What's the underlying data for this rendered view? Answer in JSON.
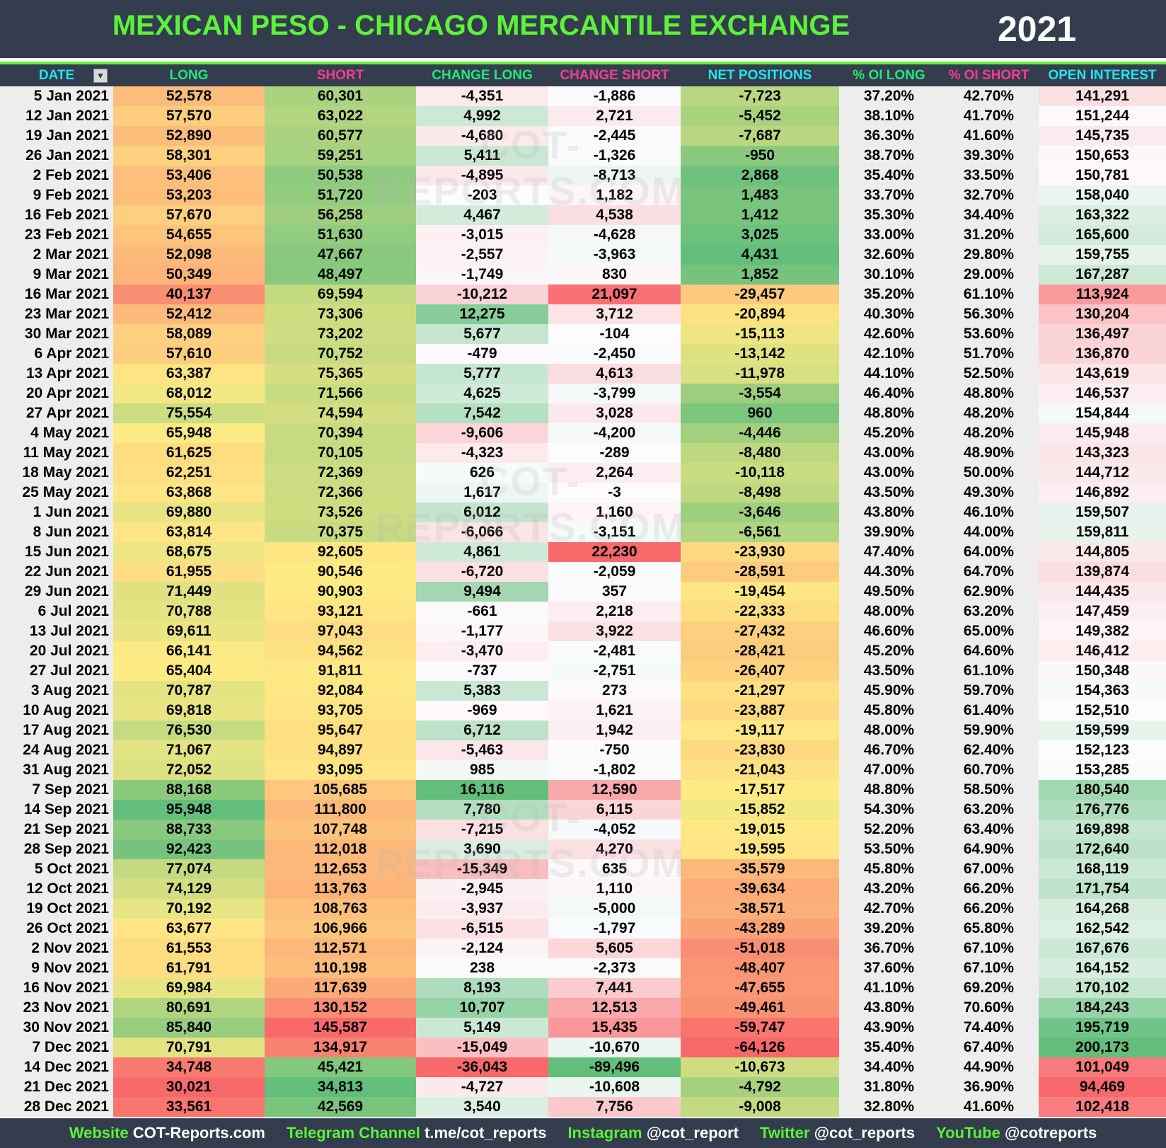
{
  "header": {
    "title": "MEXICAN PESO - CHICAGO MERCANTILE EXCHANGE",
    "year": "2021"
  },
  "watermark": "COT-REPORTS.COM",
  "colors": {
    "background": "#333d4d",
    "title": "#5cf23a",
    "cyan": "#22e5f0",
    "green": "#22e87a",
    "pink": "#ff3d8b",
    "scale_red": "#F8696B",
    "scale_yellow": "#FFEB84",
    "scale_green": "#63BE7B",
    "scale_white": "#FCFCFF"
  },
  "chart_data": {
    "type": "table",
    "columns": [
      {
        "label": "DATE",
        "color": "#22e5f0",
        "has_filter": true
      },
      {
        "label": "LONG",
        "color": "#22e87a",
        "scale": "red-yellow-green"
      },
      {
        "label": "SHORT",
        "color": "#ff3d8b",
        "scale": "green-yellow-red"
      },
      {
        "label": "CHANGE LONG",
        "color": "#22e87a",
        "scale": "red-white-green"
      },
      {
        "label": "CHANGE SHORT",
        "color": "#ff3d8b",
        "scale": "green-white-red"
      },
      {
        "label": "NET POSITIONS",
        "color": "#22e5f0",
        "scale": "red-yellow-green"
      },
      {
        "label": "% OI LONG",
        "color": "#22e87a"
      },
      {
        "label": "% OI SHORT",
        "color": "#ff3d8b"
      },
      {
        "label": "OPEN INTEREST",
        "color": "#22e5f0",
        "scale": "red-white-green"
      }
    ],
    "rows": [
      [
        "5 Jan 2021",
        "52,578",
        "60,301",
        "-4,351",
        "-1,886",
        "-7,723",
        "37.20%",
        "42.70%",
        "141,291"
      ],
      [
        "12 Jan 2021",
        "57,570",
        "63,022",
        "4,992",
        "2,721",
        "-5,452",
        "38.10%",
        "41.70%",
        "151,244"
      ],
      [
        "19 Jan 2021",
        "52,890",
        "60,577",
        "-4,680",
        "-2,445",
        "-7,687",
        "36.30%",
        "41.60%",
        "145,735"
      ],
      [
        "26 Jan 2021",
        "58,301",
        "59,251",
        "5,411",
        "-1,326",
        "-950",
        "38.70%",
        "39.30%",
        "150,653"
      ],
      [
        "2 Feb 2021",
        "53,406",
        "50,538",
        "-4,895",
        "-8,713",
        "2,868",
        "35.40%",
        "33.50%",
        "150,781"
      ],
      [
        "9 Feb 2021",
        "53,203",
        "51,720",
        "-203",
        "1,182",
        "1,483",
        "33.70%",
        "32.70%",
        "158,040"
      ],
      [
        "16 Feb 2021",
        "57,670",
        "56,258",
        "4,467",
        "4,538",
        "1,412",
        "35.30%",
        "34.40%",
        "163,322"
      ],
      [
        "23 Feb 2021",
        "54,655",
        "51,630",
        "-3,015",
        "-4,628",
        "3,025",
        "33.00%",
        "31.20%",
        "165,600"
      ],
      [
        "2 Mar 2021",
        "52,098",
        "47,667",
        "-2,557",
        "-3,963",
        "4,431",
        "32.60%",
        "29.80%",
        "159,755"
      ],
      [
        "9 Mar 2021",
        "50,349",
        "48,497",
        "-1,749",
        "830",
        "1,852",
        "30.10%",
        "29.00%",
        "167,287"
      ],
      [
        "16 Mar 2021",
        "40,137",
        "69,594",
        "-10,212",
        "21,097",
        "-29,457",
        "35.20%",
        "61.10%",
        "113,924"
      ],
      [
        "23 Mar 2021",
        "52,412",
        "73,306",
        "12,275",
        "3,712",
        "-20,894",
        "40.30%",
        "56.30%",
        "130,204"
      ],
      [
        "30 Mar 2021",
        "58,089",
        "73,202",
        "5,677",
        "-104",
        "-15,113",
        "42.60%",
        "53.60%",
        "136,497"
      ],
      [
        "6 Apr 2021",
        "57,610",
        "70,752",
        "-479",
        "-2,450",
        "-13,142",
        "42.10%",
        "51.70%",
        "136,870"
      ],
      [
        "13 Apr 2021",
        "63,387",
        "75,365",
        "5,777",
        "4,613",
        "-11,978",
        "44.10%",
        "52.50%",
        "143,619"
      ],
      [
        "20 Apr 2021",
        "68,012",
        "71,566",
        "4,625",
        "-3,799",
        "-3,554",
        "46.40%",
        "48.80%",
        "146,537"
      ],
      [
        "27 Apr 2021",
        "75,554",
        "74,594",
        "7,542",
        "3,028",
        "960",
        "48.80%",
        "48.20%",
        "154,844"
      ],
      [
        "4 May 2021",
        "65,948",
        "70,394",
        "-9,606",
        "-4,200",
        "-4,446",
        "45.20%",
        "48.20%",
        "145,948"
      ],
      [
        "11 May 2021",
        "61,625",
        "70,105",
        "-4,323",
        "-289",
        "-8,480",
        "43.00%",
        "48.90%",
        "143,323"
      ],
      [
        "18 May 2021",
        "62,251",
        "72,369",
        "626",
        "2,264",
        "-10,118",
        "43.00%",
        "50.00%",
        "144,712"
      ],
      [
        "25 May 2021",
        "63,868",
        "72,366",
        "1,617",
        "-3",
        "-8,498",
        "43.50%",
        "49.30%",
        "146,892"
      ],
      [
        "1 Jun 2021",
        "69,880",
        "73,526",
        "6,012",
        "1,160",
        "-3,646",
        "43.80%",
        "46.10%",
        "159,507"
      ],
      [
        "8 Jun 2021",
        "63,814",
        "70,375",
        "-6,066",
        "-3,151",
        "-6,561",
        "39.90%",
        "44.00%",
        "159,811"
      ],
      [
        "15 Jun 2021",
        "68,675",
        "92,605",
        "4,861",
        "22,230",
        "-23,930",
        "47.40%",
        "64.00%",
        "144,805"
      ],
      [
        "22 Jun 2021",
        "61,955",
        "90,546",
        "-6,720",
        "-2,059",
        "-28,591",
        "44.30%",
        "64.70%",
        "139,874"
      ],
      [
        "29 Jun 2021",
        "71,449",
        "90,903",
        "9,494",
        "357",
        "-19,454",
        "49.50%",
        "62.90%",
        "144,435"
      ],
      [
        "6 Jul 2021",
        "70,788",
        "93,121",
        "-661",
        "2,218",
        "-22,333",
        "48.00%",
        "63.20%",
        "147,459"
      ],
      [
        "13 Jul 2021",
        "69,611",
        "97,043",
        "-1,177",
        "3,922",
        "-27,432",
        "46.60%",
        "65.00%",
        "149,382"
      ],
      [
        "20 Jul 2021",
        "66,141",
        "94,562",
        "-3,470",
        "-2,481",
        "-28,421",
        "45.20%",
        "64.60%",
        "146,412"
      ],
      [
        "27 Jul 2021",
        "65,404",
        "91,811",
        "-737",
        "-2,751",
        "-26,407",
        "43.50%",
        "61.10%",
        "150,348"
      ],
      [
        "3 Aug 2021",
        "70,787",
        "92,084",
        "5,383",
        "273",
        "-21,297",
        "45.90%",
        "59.70%",
        "154,363"
      ],
      [
        "10 Aug 2021",
        "69,818",
        "93,705",
        "-969",
        "1,621",
        "-23,887",
        "45.80%",
        "61.40%",
        "152,510"
      ],
      [
        "17 Aug 2021",
        "76,530",
        "95,647",
        "6,712",
        "1,942",
        "-19,117",
        "48.00%",
        "59.90%",
        "159,599"
      ],
      [
        "24 Aug 2021",
        "71,067",
        "94,897",
        "-5,463",
        "-750",
        "-23,830",
        "46.70%",
        "62.40%",
        "152,123"
      ],
      [
        "31 Aug 2021",
        "72,052",
        "93,095",
        "985",
        "-1,802",
        "-21,043",
        "47.00%",
        "60.70%",
        "153,285"
      ],
      [
        "7 Sep 2021",
        "88,168",
        "105,685",
        "16,116",
        "12,590",
        "-17,517",
        "48.80%",
        "58.50%",
        "180,540"
      ],
      [
        "14 Sep 2021",
        "95,948",
        "111,800",
        "7,780",
        "6,115",
        "-15,852",
        "54.30%",
        "63.20%",
        "176,776"
      ],
      [
        "21 Sep 2021",
        "88,733",
        "107,748",
        "-7,215",
        "-4,052",
        "-19,015",
        "52.20%",
        "63.40%",
        "169,898"
      ],
      [
        "28 Sep 2021",
        "92,423",
        "112,018",
        "3,690",
        "4,270",
        "-19,595",
        "53.50%",
        "64.90%",
        "172,640"
      ],
      [
        "5 Oct 2021",
        "77,074",
        "112,653",
        "-15,349",
        "635",
        "-35,579",
        "45.80%",
        "67.00%",
        "168,119"
      ],
      [
        "12 Oct 2021",
        "74,129",
        "113,763",
        "-2,945",
        "1,110",
        "-39,634",
        "43.20%",
        "66.20%",
        "171,754"
      ],
      [
        "19 Oct 2021",
        "70,192",
        "108,763",
        "-3,937",
        "-5,000",
        "-38,571",
        "42.70%",
        "66.20%",
        "164,268"
      ],
      [
        "26 Oct 2021",
        "63,677",
        "106,966",
        "-6,515",
        "-1,797",
        "-43,289",
        "39.20%",
        "65.80%",
        "162,542"
      ],
      [
        "2 Nov 2021",
        "61,553",
        "112,571",
        "-2,124",
        "5,605",
        "-51,018",
        "36.70%",
        "67.10%",
        "167,676"
      ],
      [
        "9 Nov 2021",
        "61,791",
        "110,198",
        "238",
        "-2,373",
        "-48,407",
        "37.60%",
        "67.10%",
        "164,152"
      ],
      [
        "16 Nov 2021",
        "69,984",
        "117,639",
        "8,193",
        "7,441",
        "-47,655",
        "41.10%",
        "69.20%",
        "170,102"
      ],
      [
        "23 Nov 2021",
        "80,691",
        "130,152",
        "10,707",
        "12,513",
        "-49,461",
        "43.80%",
        "70.60%",
        "184,243"
      ],
      [
        "30 Nov 2021",
        "85,840",
        "145,587",
        "5,149",
        "15,435",
        "-59,747",
        "43.90%",
        "74.40%",
        "195,719"
      ],
      [
        "7 Dec 2021",
        "70,791",
        "134,917",
        "-15,049",
        "-10,670",
        "-64,126",
        "35.40%",
        "67.40%",
        "200,173"
      ],
      [
        "14 Dec 2021",
        "34,748",
        "45,421",
        "-36,043",
        "-89,496",
        "-10,673",
        "34.40%",
        "44.90%",
        "101,049"
      ],
      [
        "21 Dec 2021",
        "30,021",
        "34,813",
        "-4,727",
        "-10,608",
        "-4,792",
        "31.80%",
        "36.90%",
        "94,469"
      ],
      [
        "28 Dec 2021",
        "33,561",
        "42,569",
        "3,540",
        "7,756",
        "-9,008",
        "32.80%",
        "41.60%",
        "102,418"
      ]
    ]
  },
  "footer": [
    {
      "label": "Website",
      "value": "COT-Reports.com"
    },
    {
      "label": "Telegram Channel",
      "value": "t.me/cot_reports"
    },
    {
      "label": "Instagram",
      "value": "@cot_report"
    },
    {
      "label": "Twitter",
      "value": "@cot_reports"
    },
    {
      "label": "YouTube",
      "value": "@cotreports"
    }
  ]
}
